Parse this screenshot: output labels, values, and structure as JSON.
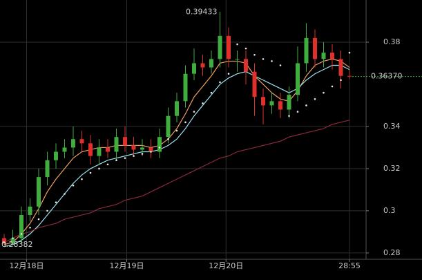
{
  "chart_data": {
    "type": "candlestick",
    "open": [
      0.287,
      0.2845,
      0.287,
      0.298,
      0.302,
      0.316,
      0.324,
      0.328,
      0.33,
      0.334,
      0.332,
      0.326,
      0.33,
      0.328,
      0.335,
      0.331,
      0.329,
      0.33,
      0.328,
      0.335,
      0.345,
      0.352,
      0.365,
      0.37,
      0.368,
      0.372,
      0.383,
      0.372,
      0.372,
      0.366,
      0.354,
      0.35,
      0.352,
      0.348,
      0.355,
      0.37,
      0.382,
      0.372,
      0.375,
      0.372,
      0.364
    ],
    "high": [
      0.289,
      0.291,
      0.302,
      0.306,
      0.32,
      0.328,
      0.332,
      0.334,
      0.34,
      0.338,
      0.336,
      0.334,
      0.334,
      0.339,
      0.34,
      0.335,
      0.334,
      0.334,
      0.339,
      0.349,
      0.356,
      0.369,
      0.377,
      0.374,
      0.376,
      0.39433,
      0.387,
      0.376,
      0.376,
      0.37,
      0.358,
      0.356,
      0.356,
      0.359,
      0.378,
      0.389,
      0.386,
      0.38,
      0.379,
      0.376,
      0.367
    ],
    "low": [
      0.28382,
      0.2842,
      0.284,
      0.295,
      0.298,
      0.312,
      0.32,
      0.325,
      0.326,
      0.328,
      0.322,
      0.322,
      0.325,
      0.324,
      0.328,
      0.326,
      0.326,
      0.325,
      0.325,
      0.332,
      0.342,
      0.349,
      0.362,
      0.364,
      0.365,
      0.368,
      0.368,
      0.366,
      0.36,
      0.345,
      0.341,
      0.346,
      0.344,
      0.344,
      0.352,
      0.366,
      0.368,
      0.368,
      0.367,
      0.358,
      0.3625
    ],
    "close": [
      0.2845,
      0.287,
      0.298,
      0.302,
      0.316,
      0.324,
      0.328,
      0.33,
      0.334,
      0.332,
      0.326,
      0.33,
      0.328,
      0.335,
      0.331,
      0.329,
      0.33,
      0.328,
      0.335,
      0.345,
      0.352,
      0.365,
      0.37,
      0.368,
      0.372,
      0.383,
      0.372,
      0.372,
      0.366,
      0.354,
      0.35,
      0.352,
      0.348,
      0.355,
      0.37,
      0.382,
      0.372,
      0.375,
      0.372,
      0.364,
      0.3637
    ],
    "up_color": "#3fae3f",
    "down_color": "#e0302c",
    "lines": [
      {
        "color": "#f0a060",
        "values": [
          0.284,
          0.285,
          0.289,
          0.294,
          0.301,
          0.309,
          0.315,
          0.32,
          0.325,
          0.328,
          0.329,
          0.33,
          0.33,
          0.331,
          0.331,
          0.331,
          0.331,
          0.33,
          0.331,
          0.334,
          0.339,
          0.346,
          0.354,
          0.359,
          0.364,
          0.37,
          0.371,
          0.371,
          0.37,
          0.364,
          0.36,
          0.356,
          0.353,
          0.352,
          0.357,
          0.364,
          0.369,
          0.371,
          0.372,
          0.371,
          0.368
        ]
      },
      {
        "color": "#9be3f0",
        "values": [
          0.283,
          0.284,
          0.286,
          0.289,
          0.293,
          0.298,
          0.303,
          0.308,
          0.313,
          0.317,
          0.32,
          0.322,
          0.324,
          0.325,
          0.326,
          0.327,
          0.328,
          0.328,
          0.329,
          0.331,
          0.334,
          0.339,
          0.345,
          0.35,
          0.355,
          0.36,
          0.363,
          0.365,
          0.366,
          0.364,
          0.362,
          0.36,
          0.358,
          0.356,
          0.358,
          0.362,
          0.365,
          0.367,
          0.369,
          0.369,
          0.367
        ]
      },
      {
        "color": "#8a2a3a",
        "values": [
          0.285,
          0.287,
          0.289,
          0.29,
          0.292,
          0.293,
          0.294,
          0.296,
          0.297,
          0.298,
          0.299,
          0.301,
          0.302,
          0.303,
          0.305,
          0.306,
          0.307,
          0.309,
          0.311,
          0.313,
          0.315,
          0.317,
          0.319,
          0.321,
          0.323,
          0.325,
          0.326,
          0.328,
          0.329,
          0.33,
          0.331,
          0.332,
          0.333,
          0.335,
          0.336,
          0.337,
          0.338,
          0.339,
          0.341,
          0.342,
          0.343
        ]
      }
    ],
    "sar": {
      "color": "#e8e8e8",
      "values": [
        0.285,
        0.287,
        0.289,
        0.292,
        0.296,
        0.3,
        0.304,
        0.308,
        0.312,
        0.315,
        0.318,
        0.32,
        0.322,
        0.324,
        0.325,
        0.326,
        0.327,
        0.328,
        0.33,
        0.334,
        0.338,
        0.342,
        0.347,
        0.351,
        0.356,
        0.361,
        0.365,
        0.379,
        0.377,
        0.374,
        0.372,
        0.371,
        0.369,
        0.345,
        0.347,
        0.35,
        0.353,
        0.356,
        0.359,
        0.362,
        0.375
      ]
    },
    "last_price": {
      "value": 0.3637,
      "label": "0.36370"
    },
    "ylim": [
      0.277,
      0.4
    ],
    "yticks": [
      0.28,
      0.3,
      0.32,
      0.34,
      0.38
    ],
    "xticks": [
      {
        "value": 2.6,
        "label": "12月18日"
      },
      {
        "value": 14.2,
        "label": "12月19日"
      },
      {
        "value": 25.7,
        "label": "12月20日"
      },
      {
        "value": 40,
        "label": "28:55"
      }
    ],
    "grid": true
  }
}
